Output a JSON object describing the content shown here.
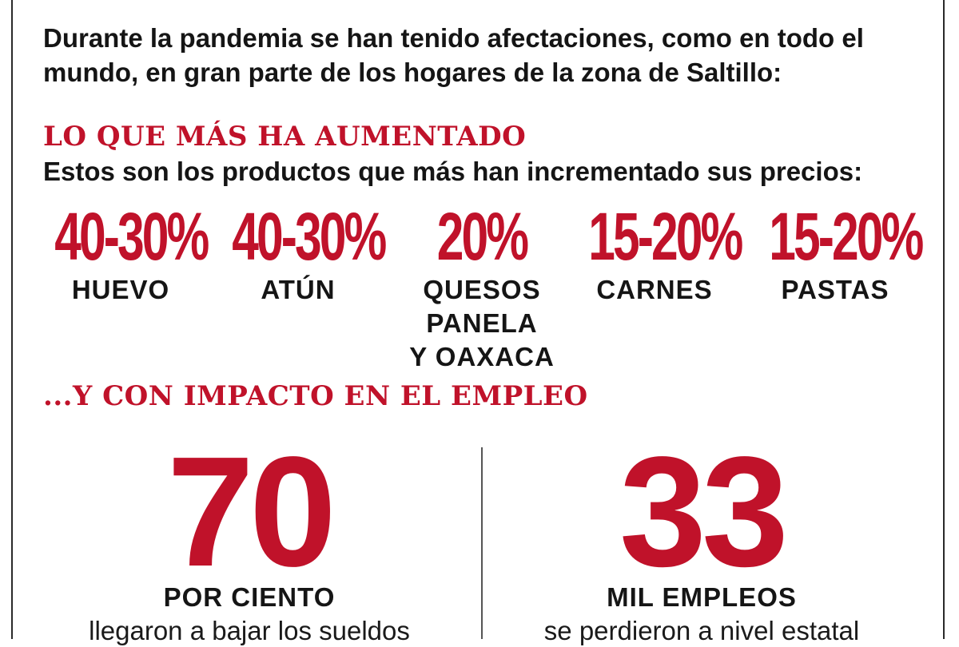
{
  "intro": "Durante la pandemia se han tenido afectaciones, como en todo el mundo, en gran parte de los hogares de la zona de Saltillo:",
  "section_increase": {
    "title": "LO QUE MÁS HA AUMENTADO",
    "subtitle": "Estos son los productos que más han incrementado sus precios:",
    "products": [
      {
        "percent": "40-30%",
        "name": "HUEVO"
      },
      {
        "percent": "40-30%",
        "name": "ATÚN"
      },
      {
        "percent": "20%",
        "name": "QUESOS\nPANELA\nY OAXACA"
      },
      {
        "percent": "15-20%",
        "name": "CARNES"
      },
      {
        "percent": "15-20%",
        "name": "PASTAS"
      }
    ]
  },
  "section_employment": {
    "title": "...Y CON IMPACTO EN EL EMPLEO",
    "stats": [
      {
        "number": "70",
        "label": "POR CIENTO",
        "description": "llegaron a bajar los sueldos"
      },
      {
        "number": "33",
        "label": "MIL EMPLEOS",
        "description": "se perdieron a nivel estatal"
      }
    ]
  },
  "colors": {
    "accent": "#c0122a",
    "text": "#151515",
    "background": "#ffffff"
  }
}
